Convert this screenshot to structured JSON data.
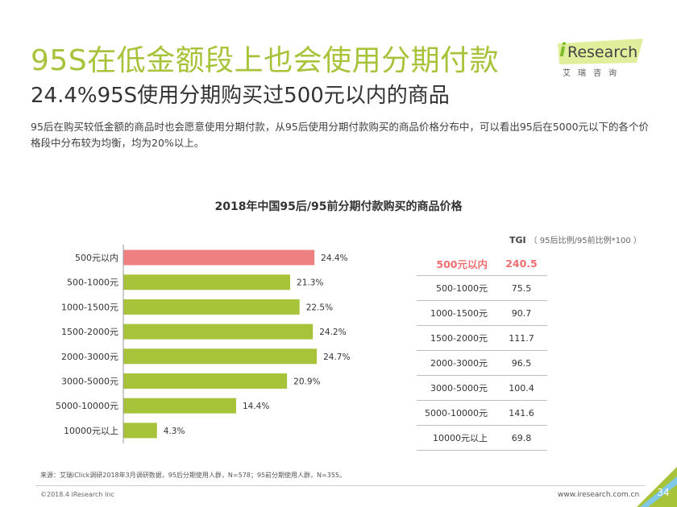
{
  "header": {
    "title": "95S在低金额段上也会使用分期付款",
    "subtitle": "24.4%95S使用分期购买过500元以内的商品",
    "description": "95后在购买较低金额的商品时也会愿意使用分期付款，从95后使用分期付款购买的商品价格分布中，可以看出95后在5000元以下的各个价格段中分布较为均衡，均为20%以上。"
  },
  "logo": {
    "i": "i",
    "research": "Research",
    "cn": "艾瑞咨询"
  },
  "chart_data": {
    "type": "bar",
    "orientation": "horizontal",
    "title": "2018年中国95后/95前分期付款购买的商品价格",
    "categories": [
      "500元以内",
      "500-1000元",
      "1000-1500元",
      "1500-2000元",
      "2000-3000元",
      "3000-5000元",
      "5000-10000元",
      "10000元以上"
    ],
    "values": [
      24.4,
      21.3,
      22.5,
      24.2,
      24.7,
      20.9,
      14.4,
      4.3
    ],
    "value_labels": [
      "24.4%",
      "21.3%",
      "22.5%",
      "24.2%",
      "24.7%",
      "20.9%",
      "14.4%",
      "4.3%"
    ],
    "highlight_index": 0,
    "colors": {
      "bar": "#a6c33a",
      "highlight": "#ef8082",
      "axis": "#999999"
    },
    "xlim": [
      0,
      25
    ]
  },
  "tgi": {
    "label": "TGI",
    "note": "（ 95后比例/95前比例*100 ）",
    "rows": [
      {
        "category": "500元以内",
        "value": "240.5"
      },
      {
        "category": "500-1000元",
        "value": "75.5"
      },
      {
        "category": "1000-1500元",
        "value": "90.7"
      },
      {
        "category": "1500-2000元",
        "value": "111.7"
      },
      {
        "category": "2000-3000元",
        "value": "96.5"
      },
      {
        "category": "3000-5000元",
        "value": "100.4"
      },
      {
        "category": "5000-10000元",
        "value": "141.6"
      },
      {
        "category": "10000元以上",
        "value": "69.8"
      }
    ]
  },
  "footer": {
    "source": "来源：艾瑞iClick调研2018年3月调研数据，95后分期使用人群，N=578；95前分期使用人群，N=355。",
    "copyright": "©2018.4 iResearch Inc",
    "website": "www.iresearch.com.cn",
    "page": "34"
  }
}
